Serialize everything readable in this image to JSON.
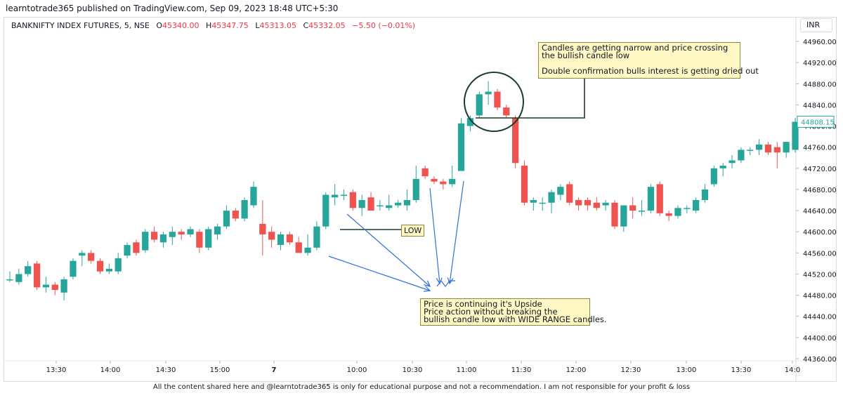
{
  "header": {
    "publish_line": "learntotrade365 published on TradingView.com, Sep 09, 2023 18:48 UTC+5:30"
  },
  "legend": {
    "symbol": "BANKNIFTY INDEX FUTURES, 5, NSE",
    "open_label": "O",
    "open": "45340.00",
    "high_label": "H",
    "high": "45347.75",
    "low_label": "L",
    "low": "45313.05",
    "close_label": "C",
    "close": "45332.05",
    "change": "−5.50 (−0.01%)"
  },
  "currency": "INR",
  "last_price": "44808.15",
  "annotations": {
    "top_note": "Candles are getting narrow and price crossing\nthe bullish candle low\n\nDouble confirmation bulls interest is getting dried out",
    "bottom_note": "Price is continuing it's Upside\nPrice action without breaking the\nbullish candle low with WIDE RANGE candles.",
    "low_label": "LOW"
  },
  "footer": "All the content shared here and @learntotrade365 is only for educational purpose and not a recommendation. I am not responsible for your profit & loss",
  "colors": {
    "bull": "#26a69a",
    "bear": "#ef5350",
    "arrow": "#2f6fde",
    "note_bg": "#fff8c4",
    "price_tag": "#26a69a"
  },
  "chart_data": {
    "type": "candlestick",
    "ylim": [
      44360,
      44980
    ],
    "y_ticks": [
      "44960.00",
      "44920.00",
      "44880.00",
      "44840.00",
      "44800.00",
      "44760.00",
      "44720.00",
      "44680.00",
      "44640.00",
      "44600.00",
      "44560.00",
      "44520.00",
      "44480.00",
      "44440.00",
      "44400.00",
      "44360.00"
    ],
    "x_ticks": [
      "13:30",
      "14:00",
      "14:30",
      "15:00",
      "7",
      "10:00",
      "10:30",
      "11:00",
      "11:30",
      "12:00",
      "12:30",
      "13:00",
      "13:30",
      "14:0"
    ],
    "candles": [
      {
        "o": 44510,
        "h": 44525,
        "l": 44505,
        "c": 44510
      },
      {
        "o": 44505,
        "h": 44530,
        "l": 44500,
        "c": 44520
      },
      {
        "o": 44520,
        "h": 44545,
        "l": 44515,
        "c": 44535
      },
      {
        "o": 44540,
        "h": 44545,
        "l": 44490,
        "c": 44495
      },
      {
        "o": 44495,
        "h": 44515,
        "l": 44485,
        "c": 44500
      },
      {
        "o": 44500,
        "h": 44505,
        "l": 44480,
        "c": 44490
      },
      {
        "o": 44485,
        "h": 44515,
        "l": 44470,
        "c": 44510
      },
      {
        "o": 44515,
        "h": 44550,
        "l": 44510,
        "c": 44545
      },
      {
        "o": 44555,
        "h": 44565,
        "l": 44535,
        "c": 44560
      },
      {
        "o": 44560,
        "h": 44565,
        "l": 44540,
        "c": 44545
      },
      {
        "o": 44545,
        "h": 44550,
        "l": 44520,
        "c": 44525
      },
      {
        "o": 44525,
        "h": 44540,
        "l": 44520,
        "c": 44530
      },
      {
        "o": 44525,
        "h": 44560,
        "l": 44520,
        "c": 44550
      },
      {
        "o": 44555,
        "h": 44580,
        "l": 44550,
        "c": 44575
      },
      {
        "o": 44580,
        "h": 44585,
        "l": 44555,
        "c": 44560
      },
      {
        "o": 44565,
        "h": 44605,
        "l": 44560,
        "c": 44600
      },
      {
        "o": 44600,
        "h": 44610,
        "l": 44580,
        "c": 44585
      },
      {
        "o": 44580,
        "h": 44600,
        "l": 44570,
        "c": 44595
      },
      {
        "o": 44590,
        "h": 44610,
        "l": 44575,
        "c": 44600
      },
      {
        "o": 44600,
        "h": 44605,
        "l": 44585,
        "c": 44595
      },
      {
        "o": 44595,
        "h": 44610,
        "l": 44590,
        "c": 44605
      },
      {
        "o": 44600,
        "h": 44605,
        "l": 44560,
        "c": 44570
      },
      {
        "o": 44570,
        "h": 44610,
        "l": 44565,
        "c": 44605
      },
      {
        "o": 44595,
        "h": 44615,
        "l": 44585,
        "c": 44610
      },
      {
        "o": 44610,
        "h": 44650,
        "l": 44605,
        "c": 44640
      },
      {
        "o": 44640,
        "h": 44645,
        "l": 44620,
        "c": 44625
      },
      {
        "o": 44625,
        "h": 44665,
        "l": 44620,
        "c": 44660
      },
      {
        "o": 44650,
        "h": 44695,
        "l": 44645,
        "c": 44685
      },
      {
        "o": 44615,
        "h": 44660,
        "l": 44555,
        "c": 44595
      },
      {
        "o": 44600,
        "h": 44610,
        "l": 44570,
        "c": 44585
      },
      {
        "o": 44575,
        "h": 44600,
        "l": 44565,
        "c": 44595
      },
      {
        "o": 44595,
        "h": 44600,
        "l": 44575,
        "c": 44580
      },
      {
        "o": 44580,
        "h": 44590,
        "l": 44565,
        "c": 44560
      },
      {
        "o": 44560,
        "h": 44595,
        "l": 44555,
        "c": 44570
      },
      {
        "o": 44570,
        "h": 44620,
        "l": 44565,
        "c": 44610
      },
      {
        "o": 44610,
        "h": 44675,
        "l": 44605,
        "c": 44670
      },
      {
        "o": 44665,
        "h": 44690,
        "l": 44650,
        "c": 44670
      },
      {
        "o": 44668,
        "h": 44680,
        "l": 44660,
        "c": 44670
      },
      {
        "o": 44675,
        "h": 44680,
        "l": 44640,
        "c": 44645
      },
      {
        "o": 44645,
        "h": 44670,
        "l": 44630,
        "c": 44660
      },
      {
        "o": 44665,
        "h": 44675,
        "l": 44640,
        "c": 44640
      },
      {
        "o": 44650,
        "h": 44660,
        "l": 44640,
        "c": 44650
      },
      {
        "o": 44645,
        "h": 44670,
        "l": 44640,
        "c": 44650
      },
      {
        "o": 44650,
        "h": 44660,
        "l": 44645,
        "c": 44655
      },
      {
        "o": 44650,
        "h": 44680,
        "l": 44640,
        "c": 44660
      },
      {
        "o": 44660,
        "h": 44725,
        "l": 44655,
        "c": 44700
      },
      {
        "o": 44720,
        "h": 44725,
        "l": 44700,
        "c": 44705
      },
      {
        "o": 44700,
        "h": 44705,
        "l": 44690,
        "c": 44695
      },
      {
        "o": 44695,
        "h": 44700,
        "l": 44680,
        "c": 44690
      },
      {
        "o": 44690,
        "h": 44725,
        "l": 44685,
        "c": 44700
      },
      {
        "o": 44715,
        "h": 44815,
        "l": 44715,
        "c": 44805
      },
      {
        "o": 44800,
        "h": 44820,
        "l": 44790,
        "c": 44815
      },
      {
        "o": 44820,
        "h": 44865,
        "l": 44815,
        "c": 44860
      },
      {
        "o": 44860,
        "h": 44885,
        "l": 44840,
        "c": 44865
      },
      {
        "o": 44865,
        "h": 44870,
        "l": 44830,
        "c": 44835
      },
      {
        "o": 44835,
        "h": 44840,
        "l": 44815,
        "c": 44820
      },
      {
        "o": 44815,
        "h": 44820,
        "l": 44720,
        "c": 44730
      },
      {
        "o": 44725,
        "h": 44735,
        "l": 44650,
        "c": 44655
      },
      {
        "o": 44655,
        "h": 44665,
        "l": 44640,
        "c": 44660
      },
      {
        "o": 44655,
        "h": 44665,
        "l": 44640,
        "c": 44655
      },
      {
        "o": 44655,
        "h": 44680,
        "l": 44635,
        "c": 44675
      },
      {
        "o": 44670,
        "h": 44690,
        "l": 44660,
        "c": 44685
      },
      {
        "o": 44690,
        "h": 44695,
        "l": 44650,
        "c": 44655
      },
      {
        "o": 44660,
        "h": 44665,
        "l": 44640,
        "c": 44650
      },
      {
        "o": 44660,
        "h": 44665,
        "l": 44640,
        "c": 44650
      },
      {
        "o": 44655,
        "h": 44665,
        "l": 44640,
        "c": 44645
      },
      {
        "o": 44650,
        "h": 44660,
        "l": 44640,
        "c": 44655
      },
      {
        "o": 44655,
        "h": 44660,
        "l": 44605,
        "c": 44610
      },
      {
        "o": 44610,
        "h": 44650,
        "l": 44600,
        "c": 44650
      },
      {
        "o": 44650,
        "h": 44665,
        "l": 44625,
        "c": 44640
      },
      {
        "o": 44640,
        "h": 44660,
        "l": 44630,
        "c": 44640
      },
      {
        "o": 44640,
        "h": 44690,
        "l": 44635,
        "c": 44685
      },
      {
        "o": 44690,
        "h": 44695,
        "l": 44630,
        "c": 44635
      },
      {
        "o": 44635,
        "h": 44640,
        "l": 44620,
        "c": 44630
      },
      {
        "o": 44630,
        "h": 44650,
        "l": 44625,
        "c": 44645
      },
      {
        "o": 44645,
        "h": 44650,
        "l": 44635,
        "c": 44645
      },
      {
        "o": 44640,
        "h": 44665,
        "l": 44635,
        "c": 44660
      },
      {
        "o": 44660,
        "h": 44690,
        "l": 44655,
        "c": 44680
      },
      {
        "o": 44690,
        "h": 44725,
        "l": 44685,
        "c": 44720
      },
      {
        "o": 44720,
        "h": 44730,
        "l": 44705,
        "c": 44725
      },
      {
        "o": 44730,
        "h": 44745,
        "l": 44720,
        "c": 44735
      },
      {
        "o": 44735,
        "h": 44760,
        "l": 44730,
        "c": 44755
      },
      {
        "o": 44755,
        "h": 44760,
        "l": 44745,
        "c": 44755
      },
      {
        "o": 44755,
        "h": 44775,
        "l": 44745,
        "c": 44765
      },
      {
        "o": 44765,
        "h": 44770,
        "l": 44745,
        "c": 44750
      },
      {
        "o": 44760,
        "h": 44770,
        "l": 44720,
        "c": 44750
      },
      {
        "o": 44750,
        "h": 44770,
        "l": 44740,
        "c": 44770
      },
      {
        "o": 44755,
        "h": 44815,
        "l": 44750,
        "c": 44808
      }
    ]
  }
}
